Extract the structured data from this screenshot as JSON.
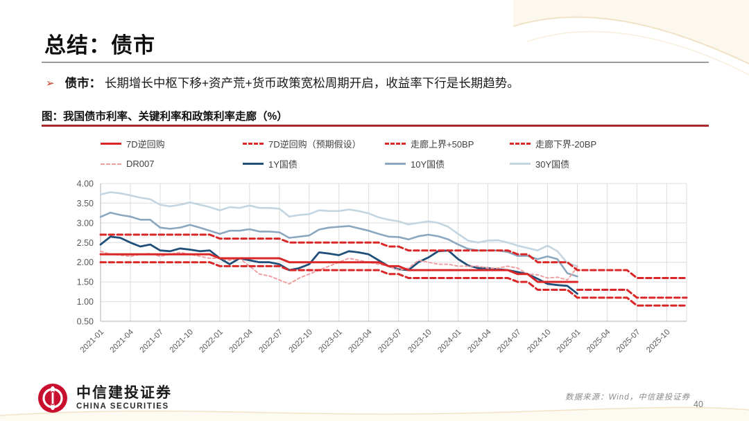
{
  "slide": {
    "title": "总结：债市",
    "bullet": {
      "marker": "➢",
      "label": "债市：",
      "text": "长期增长中枢下移+资产荒+货币政策宽松周期开启，收益率下行是长期趋势。"
    },
    "figure_title": "图：我国债市利率、关键利率和政策利率走廊（%）",
    "footer": {
      "logo_cn": "中信建投证券",
      "logo_en": "CHINA SECURITIES",
      "source": "数据来源：Wind，中信建投证券",
      "page": "40"
    }
  },
  "colors": {
    "accent_red": "#d92626",
    "dr007_pink": "#ef9f9f",
    "blue_1y": "#1f4e79",
    "blue_10y": "#8ba7bf",
    "blue_30y": "#c3d5e1",
    "figure_rule_red": "#a62b2a",
    "grid": "#dcdcdc",
    "axis": "#b0b0b0",
    "axis_text": "#595959"
  },
  "chart_data": {
    "type": "line",
    "title": "我国债市利率、关键利率和政策利率走廊（%）",
    "x_monthly_start": "2021-01",
    "x_monthly_end": "2025-12",
    "x_tick_labels": [
      "2021-01",
      "2021-04",
      "2021-07",
      "2021-10",
      "2022-01",
      "2022-04",
      "2022-07",
      "2022-10",
      "2023-01",
      "2023-04",
      "2023-07",
      "2023-10",
      "2024-01",
      "2024-04",
      "2024-07",
      "2024-10",
      "2025-01",
      "2025-04",
      "2025-07",
      "2025-10"
    ],
    "x_tick_step_months": 3,
    "ylim": [
      0.5,
      4.0
    ],
    "ytick_labels": [
      "4.00",
      "3.50",
      "3.00",
      "2.50",
      "2.00",
      "1.50",
      "1.00",
      "0.50"
    ],
    "grid": true,
    "legend_position": "top",
    "series": [
      {
        "id": "omo7d",
        "name": "7D逆回购",
        "color": "#d92626",
        "dash": "solid",
        "width": 3,
        "z": 5,
        "values": [
          2.2,
          2.2,
          2.2,
          2.2,
          2.2,
          2.2,
          2.2,
          2.2,
          2.2,
          2.2,
          2.2,
          2.2,
          2.1,
          2.1,
          2.1,
          2.1,
          2.1,
          2.1,
          2.1,
          2.0,
          2.0,
          2.0,
          2.0,
          2.0,
          2.0,
          2.0,
          2.0,
          2.0,
          2.0,
          1.9,
          1.9,
          1.8,
          1.8,
          1.8,
          1.8,
          1.8,
          1.8,
          1.8,
          1.8,
          1.8,
          1.8,
          1.8,
          1.7,
          1.7,
          1.5,
          1.5,
          1.5,
          1.5,
          1.5,
          null,
          null,
          null,
          null,
          null,
          null,
          null,
          null,
          null,
          null,
          null
        ]
      },
      {
        "id": "omo7d_exp",
        "name": "7D逆回购（预期假设）",
        "color": "#d92626",
        "dash": "dashed",
        "width": 3,
        "z": 8,
        "values": [
          null,
          null,
          null,
          null,
          null,
          null,
          null,
          null,
          null,
          null,
          null,
          null,
          null,
          null,
          null,
          null,
          null,
          null,
          null,
          null,
          null,
          null,
          null,
          null,
          null,
          null,
          null,
          null,
          null,
          null,
          null,
          null,
          null,
          null,
          null,
          null,
          null,
          null,
          null,
          null,
          null,
          null,
          null,
          null,
          null,
          null,
          null,
          null,
          1.3,
          1.3,
          1.3,
          1.3,
          1.3,
          1.3,
          1.1,
          1.1,
          1.1,
          1.1,
          1.1,
          1.1
        ]
      },
      {
        "id": "corridor_upper",
        "name": "走廊上界+50BP",
        "color": "#d92626",
        "dash": "dashed",
        "width": 3,
        "z": 6,
        "values": [
          2.7,
          2.7,
          2.7,
          2.7,
          2.7,
          2.7,
          2.7,
          2.7,
          2.7,
          2.7,
          2.7,
          2.7,
          2.6,
          2.6,
          2.6,
          2.6,
          2.6,
          2.6,
          2.6,
          2.5,
          2.5,
          2.5,
          2.5,
          2.5,
          2.5,
          2.5,
          2.5,
          2.5,
          2.5,
          2.4,
          2.4,
          2.3,
          2.3,
          2.3,
          2.3,
          2.3,
          2.3,
          2.3,
          2.3,
          2.3,
          2.3,
          2.3,
          2.2,
          2.2,
          2.0,
          2.0,
          2.0,
          2.0,
          1.8,
          1.8,
          1.8,
          1.8,
          1.8,
          1.8,
          1.6,
          1.6,
          1.6,
          1.6,
          1.6,
          1.6
        ]
      },
      {
        "id": "corridor_lower",
        "name": "走廊下界-20BP",
        "color": "#d92626",
        "dash": "dashed",
        "width": 3,
        "z": 7,
        "values": [
          2.0,
          2.0,
          2.0,
          2.0,
          2.0,
          2.0,
          2.0,
          2.0,
          2.0,
          2.0,
          2.0,
          2.0,
          1.9,
          1.9,
          1.9,
          1.9,
          1.9,
          1.9,
          1.9,
          1.8,
          1.8,
          1.8,
          1.8,
          1.8,
          1.8,
          1.8,
          1.8,
          1.8,
          1.8,
          1.7,
          1.7,
          1.6,
          1.6,
          1.6,
          1.6,
          1.6,
          1.6,
          1.6,
          1.6,
          1.6,
          1.6,
          1.6,
          1.5,
          1.5,
          1.3,
          1.3,
          1.3,
          1.3,
          1.1,
          1.1,
          1.1,
          1.1,
          1.1,
          1.1,
          0.9,
          0.9,
          0.9,
          0.9,
          0.9,
          0.9
        ]
      },
      {
        "id": "dr007",
        "name": "DR007",
        "color": "#ef9f9f",
        "dash": "dashed",
        "width": 2,
        "z": 4,
        "values": [
          2.28,
          2.2,
          2.18,
          2.15,
          2.2,
          2.22,
          2.15,
          2.2,
          2.25,
          2.2,
          2.15,
          2.1,
          2.1,
          2.05,
          2.1,
          1.9,
          1.7,
          1.65,
          1.55,
          1.45,
          1.6,
          1.7,
          1.8,
          1.9,
          2.0,
          2.1,
          2.05,
          2.0,
          1.95,
          1.9,
          1.8,
          1.85,
          2.05,
          2.0,
          1.95,
          1.95,
          1.9,
          1.9,
          1.9,
          1.85,
          1.85,
          1.9,
          1.85,
          1.7,
          1.68,
          1.6,
          1.62,
          1.55,
          1.88,
          null,
          null,
          null,
          null,
          null,
          null,
          null,
          null,
          null,
          null,
          null
        ]
      },
      {
        "id": "cgb1y",
        "name": "1Y国债",
        "color": "#1f4e79",
        "dash": "solid",
        "width": 2.8,
        "z": 3,
        "values": [
          2.45,
          2.65,
          2.62,
          2.5,
          2.4,
          2.45,
          2.3,
          2.28,
          2.35,
          2.32,
          2.28,
          2.3,
          2.1,
          1.95,
          2.1,
          2.05,
          2.0,
          2.0,
          1.95,
          1.8,
          1.85,
          1.95,
          2.25,
          2.22,
          2.18,
          2.28,
          2.25,
          2.2,
          2.05,
          1.9,
          1.82,
          1.8,
          2.0,
          2.12,
          2.28,
          2.3,
          2.08,
          1.92,
          1.85,
          1.85,
          1.82,
          1.8,
          1.75,
          1.7,
          1.58,
          1.45,
          1.42,
          1.4,
          1.2,
          null,
          null,
          null,
          null,
          null,
          null,
          null,
          null,
          null,
          null,
          null
        ]
      },
      {
        "id": "cgb10y",
        "name": "10Y国债",
        "color": "#8ba7bf",
        "dash": "solid",
        "width": 2.6,
        "z": 2,
        "values": [
          3.15,
          3.26,
          3.2,
          3.16,
          3.08,
          3.08,
          2.88,
          2.85,
          2.88,
          2.95,
          2.88,
          2.8,
          2.72,
          2.8,
          2.8,
          2.84,
          2.78,
          2.78,
          2.76,
          2.62,
          2.65,
          2.68,
          2.83,
          2.88,
          2.9,
          2.92,
          2.86,
          2.8,
          2.72,
          2.65,
          2.64,
          2.58,
          2.66,
          2.7,
          2.66,
          2.58,
          2.45,
          2.34,
          2.3,
          2.3,
          2.3,
          2.26,
          2.16,
          2.16,
          2.08,
          2.15,
          2.08,
          1.72,
          1.64,
          null,
          null,
          null,
          null,
          null,
          null,
          null,
          null,
          null,
          null,
          null
        ]
      },
      {
        "id": "cgb30y",
        "name": "30Y国债",
        "color": "#c3d5e1",
        "dash": "solid",
        "width": 2.6,
        "z": 1,
        "values": [
          3.72,
          3.78,
          3.75,
          3.7,
          3.64,
          3.6,
          3.46,
          3.42,
          3.46,
          3.52,
          3.46,
          3.4,
          3.32,
          3.4,
          3.38,
          3.44,
          3.38,
          3.38,
          3.36,
          3.16,
          3.2,
          3.22,
          3.32,
          3.3,
          3.3,
          3.34,
          3.3,
          3.24,
          3.14,
          3.08,
          3.04,
          2.96,
          3.0,
          3.04,
          3.0,
          2.9,
          2.72,
          2.55,
          2.5,
          2.55,
          2.56,
          2.5,
          2.42,
          2.36,
          2.3,
          2.42,
          2.28,
          1.98,
          1.9,
          null,
          null,
          null,
          null,
          null,
          null,
          null,
          null,
          null,
          null,
          null
        ]
      }
    ]
  }
}
